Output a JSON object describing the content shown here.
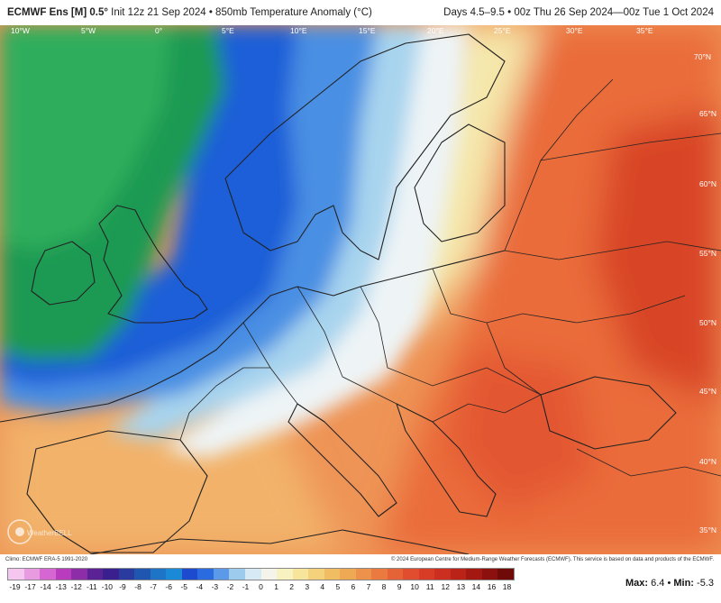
{
  "header": {
    "model": "ECMWF Ens [M] 0.5°",
    "init": "Init 12z 21 Sep 2024 • 850mb Temperature Anomaly (°C)",
    "valid": "Days 4.5–9.5 • 00z Thu 26 Sep 2024—00z Tue 1 Oct 2024"
  },
  "map": {
    "lon_labels": [
      "10°W",
      "5°W",
      "0°",
      "5°E",
      "10°E",
      "15°E",
      "20°E",
      "25°E",
      "30°E",
      "35°E"
    ],
    "lat_labels": [
      "70°N",
      "65°N",
      "60°N",
      "55°N",
      "50°N",
      "45°N",
      "40°N",
      "35°N"
    ],
    "watermark": "WeatherBELL"
  },
  "footer": {
    "climo": "Climo: ECMWF ERA-5 1991-2020",
    "copyright": "© 2024 European Centre for Medium-Range Weather Forecasts (ECMWF). This service is based on data and products of the ECMWF."
  },
  "colorbar": {
    "ticks": [
      "-19",
      "-17",
      "-14",
      "-13",
      "-12",
      "-11",
      "-10",
      "-9",
      "-8",
      "-7",
      "-6",
      "-5",
      "-4",
      "-3",
      "-2",
      "-1",
      "0",
      "1",
      "2",
      "3",
      "4",
      "5",
      "6",
      "7",
      "8",
      "9",
      "10",
      "11",
      "12",
      "13",
      "14",
      "16",
      "18"
    ],
    "colors": [
      "#f5c6ef",
      "#e89be0",
      "#d566d2",
      "#b83cbd",
      "#8e2da8",
      "#5b2296",
      "#3a1f8f",
      "#2a3a9e",
      "#1f56b0",
      "#1e74c6",
      "#1a8ad8",
      "#1c4bd0",
      "#2a6be0",
      "#5b9ae8",
      "#9ccbee",
      "#d6e9f4",
      "#f4f4ea",
      "#f8f2c0",
      "#f6e59a",
      "#f3d27b",
      "#f1bd62",
      "#efa853",
      "#ed924a",
      "#ea7a40",
      "#e66237",
      "#e04e2f",
      "#d83c26",
      "#cc2e1f",
      "#bb2218",
      "#a41812",
      "#8c100d",
      "#6f0a08"
    ],
    "max_label": "Max:",
    "max_value": "6.4",
    "min_label": "Min:",
    "min_value": "-5.3"
  }
}
